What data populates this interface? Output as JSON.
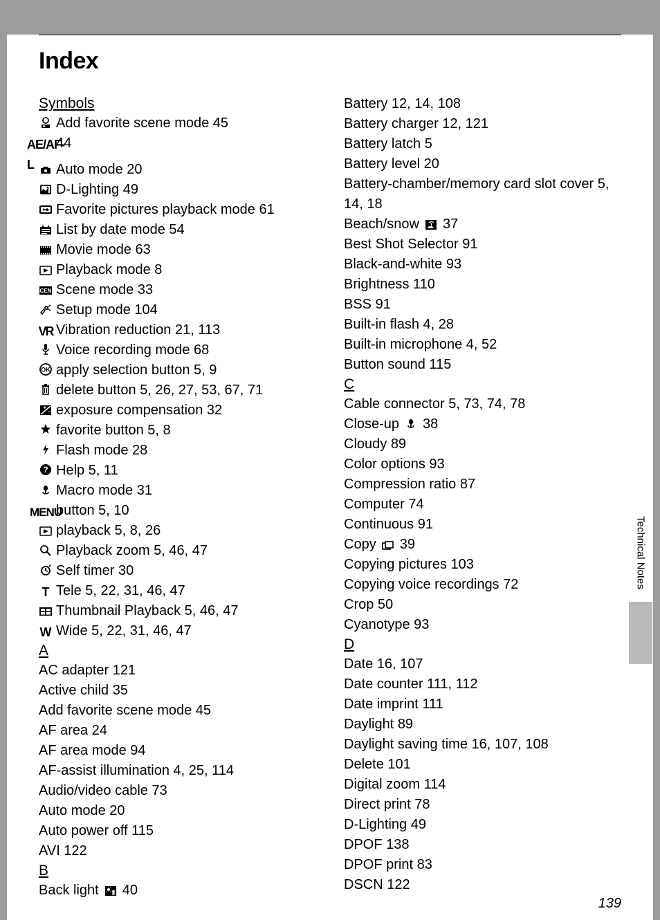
{
  "page": {
    "title": "Index",
    "number": "139",
    "side_label": "Technical Notes"
  },
  "col1": {
    "sections": [
      {
        "head": "Symbols",
        "entries": [
          {
            "icon": "fav-scene",
            "text": "Add favorite scene mode 45"
          },
          {
            "icon": "aeafl",
            "text": "44"
          },
          {
            "icon": "camera",
            "text": "Auto mode 20"
          },
          {
            "icon": "dlight",
            "text": "D-Lighting 49"
          },
          {
            "icon": "fav-play",
            "text": "Favorite pictures playback mode 61"
          },
          {
            "icon": "listdate",
            "text": "List by date mode 54"
          },
          {
            "icon": "movie",
            "text": "Movie mode 63"
          },
          {
            "icon": "play",
            "text": "Playback mode 8"
          },
          {
            "icon": "scene",
            "text": "Scene mode 33"
          },
          {
            "icon": "setup",
            "text": "Setup mode 104"
          },
          {
            "icon": "vr",
            "text": "Vibration reduction 21, 113"
          },
          {
            "icon": "mic",
            "text": "Voice recording mode 68"
          },
          {
            "icon": "ok",
            "text": "apply selection button 5, 9"
          },
          {
            "icon": "trash",
            "text": "delete button 5, 26, 27, 53, 67, 71"
          },
          {
            "icon": "expcomp",
            "text": "exposure compensation 32"
          },
          {
            "icon": "star",
            "text": "favorite button 5, 8"
          },
          {
            "icon": "flash",
            "text": "Flash mode 28"
          },
          {
            "icon": "help",
            "text": "Help 5, 11"
          },
          {
            "icon": "macro",
            "text": "Macro mode 31"
          },
          {
            "icon": "menu",
            "text": "button 5, 10"
          },
          {
            "icon": "play",
            "text": "playback 5, 8, 26"
          },
          {
            "icon": "zoom",
            "text": "Playback zoom 5, 46, 47"
          },
          {
            "icon": "timer",
            "text": "Self timer 30"
          },
          {
            "icon": "tele",
            "text": "Tele 5, 22, 31, 46, 47"
          },
          {
            "icon": "thumb",
            "text": "Thumbnail Playback 5, 46, 47"
          },
          {
            "icon": "wide",
            "text": "Wide 5, 22, 31, 46, 47"
          }
        ]
      },
      {
        "head": "A",
        "entries": [
          {
            "text": "AC adapter 121"
          },
          {
            "text": "Active child 35"
          },
          {
            "text": "Add favorite scene mode 45"
          },
          {
            "text": "AF area 24"
          },
          {
            "text": "AF area mode 94"
          },
          {
            "text": "AF-assist illumination 4, 25, 114"
          },
          {
            "text": "Audio/video cable 73"
          },
          {
            "text": "Auto mode 20"
          },
          {
            "text": "Auto power off 115"
          },
          {
            "text": "AVI 122"
          }
        ]
      },
      {
        "head": "B",
        "entries": [
          {
            "text": "Back light",
            "trail_icon": "backlight",
            "after": "40"
          }
        ]
      }
    ]
  },
  "col2": {
    "sections": [
      {
        "entries": [
          {
            "text": "Battery 12, 14, 108"
          },
          {
            "text": "Battery charger 12, 121"
          },
          {
            "text": "Battery latch 5"
          },
          {
            "text": "Battery level 20"
          },
          {
            "text": "Battery-chamber/memory card slot cover 5, 14, 18"
          },
          {
            "text": "Beach/snow",
            "trail_icon": "beach",
            "after": "37"
          },
          {
            "text": "Best Shot Selector 91"
          },
          {
            "text": "Black-and-white 93"
          },
          {
            "text": "Brightness 110"
          },
          {
            "text": "BSS 91"
          },
          {
            "text": "Built-in flash 4, 28"
          },
          {
            "text": "Built-in microphone 4, 52"
          },
          {
            "text": "Button sound 115"
          }
        ]
      },
      {
        "head": "C",
        "entries": [
          {
            "text": "Cable connector 5, 73, 74, 78"
          },
          {
            "text": "Close-up",
            "trail_icon": "closeup",
            "after": "38"
          },
          {
            "text": "Cloudy 89"
          },
          {
            "text": "Color options 93"
          },
          {
            "text": "Compression ratio 87"
          },
          {
            "text": "Computer 74"
          },
          {
            "text": "Continuous 91"
          },
          {
            "text": "Copy",
            "trail_icon": "copy",
            "after": "39"
          },
          {
            "text": "Copying pictures 103"
          },
          {
            "text": "Copying voice recordings 72"
          },
          {
            "text": "Crop 50"
          },
          {
            "text": "Cyanotype 93"
          }
        ]
      },
      {
        "head": "D",
        "entries": [
          {
            "text": "Date 16, 107"
          },
          {
            "text": "Date counter 111, 112"
          },
          {
            "text": "Date imprint 111"
          },
          {
            "text": "Daylight 89"
          },
          {
            "text": "Daylight saving time 16, 107, 108"
          },
          {
            "text": "Delete 101"
          },
          {
            "text": "Digital zoom 114"
          },
          {
            "text": "Direct print 78"
          },
          {
            "text": "D-Lighting 49"
          },
          {
            "text": "DPOF 138"
          },
          {
            "text": "DPOF print 83"
          },
          {
            "text": "DSCN 122"
          }
        ]
      }
    ]
  }
}
